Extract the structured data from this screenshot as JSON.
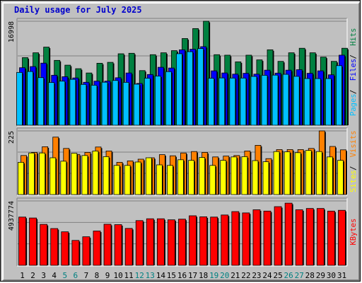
{
  "title": "Daily usage for July 2025",
  "colors": {
    "background": "#c0c0c0",
    "panel": "#c0c0c0",
    "hits": "#008040",
    "files": "#0000ff",
    "pages": "#00c0ff",
    "visits": "#ff8000",
    "sites": "#ffff00",
    "kbytes": "#ff0000",
    "title": "#0000cc",
    "day_weekday": "#000000",
    "day_weekend": "#008080"
  },
  "chart_data": [
    {
      "type": "bar",
      "panel": "hits-files-pages",
      "max_label": "16998",
      "right_label_parts": [
        "Pages",
        "Files",
        "Hits"
      ],
      "ylim": [
        0,
        16998
      ],
      "categories": [
        "1",
        "2",
        "3",
        "4",
        "5",
        "6",
        "7",
        "8",
        "9",
        "10",
        "11",
        "12",
        "13",
        "14",
        "15",
        "16",
        "17",
        "18",
        "19",
        "20",
        "21",
        "22",
        "23",
        "24",
        "25",
        "26",
        "27",
        "28",
        "29",
        "30",
        "31"
      ],
      "series": [
        {
          "name": "Hits",
          "values": [
            11050,
            11840,
            12770,
            10600,
            9820,
            9240,
            8540,
            10130,
            10280,
            11680,
            11760,
            8930,
            11530,
            11840,
            12190,
            14170,
            15800,
            16998,
            11530,
            11450,
            10360,
            11450,
            10680,
            12330,
            10440,
            11840,
            12580,
            11840,
            11140,
            10440,
            12580
          ]
        },
        {
          "name": "Files",
          "values": [
            9400,
            9590,
            10150,
            8170,
            7930,
            7730,
            7020,
            7210,
            7210,
            7760,
            8540,
            6830,
            8290,
            9470,
            9350,
            12330,
            12420,
            12840,
            8890,
            8540,
            8350,
            8490,
            8350,
            9000,
            8520,
            9000,
            9080,
            8490,
            8890,
            8240,
            11450
          ]
        },
        {
          "name": "Pages",
          "values": [
            8630,
            8780,
            7780,
            6980,
            7210,
            7500,
            6670,
            6540,
            7030,
            7320,
            7010,
            6710,
            7690,
            8040,
            8760,
            11690,
            12020,
            12530,
            7680,
            7730,
            7710,
            7710,
            7980,
            8160,
            8190,
            8320,
            7990,
            7630,
            7630,
            7630,
            9740
          ]
        }
      ]
    },
    {
      "type": "bar",
      "panel": "visits-sites",
      "max_label": "225",
      "right_label_parts": [
        "Sites",
        "Visits"
      ],
      "ylim": [
        0,
        225
      ],
      "categories": [
        "1",
        "2",
        "3",
        "4",
        "5",
        "6",
        "7",
        "8",
        "9",
        "10",
        "11",
        "12",
        "13",
        "14",
        "15",
        "16",
        "17",
        "18",
        "19",
        "20",
        "21",
        "22",
        "23",
        "24",
        "25",
        "26",
        "27",
        "28",
        "29",
        "30",
        "31"
      ],
      "series": [
        {
          "name": "Visits",
          "values": [
            138,
            149,
            169,
            203,
            163,
            142,
            149,
            168,
            154,
            114,
            119,
            125,
            130,
            141,
            137,
            147,
            152,
            149,
            133,
            136,
            138,
            154,
            174,
            127,
            159,
            159,
            159,
            163,
            225,
            170,
            158
          ]
        },
        {
          "name": "Sites",
          "values": [
            114,
            147,
            147,
            130,
            118,
            146,
            138,
            154,
            134,
            103,
            103,
            115,
            130,
            105,
            103,
            123,
            121,
            131,
            103,
            121,
            133,
            134,
            120,
            116,
            152,
            151,
            148,
            156,
            152,
            133,
            121
          ]
        }
      ]
    },
    {
      "type": "bar",
      "panel": "kbytes",
      "max_label": "4937774",
      "right_label_parts": [
        "KBytes"
      ],
      "ylim": [
        0,
        4937774
      ],
      "categories": [
        "1",
        "2",
        "3",
        "4",
        "5",
        "6",
        "7",
        "8",
        "9",
        "10",
        "11",
        "12",
        "13",
        "14",
        "15",
        "16",
        "17",
        "18",
        "19",
        "20",
        "21",
        "22",
        "23",
        "24",
        "25",
        "26",
        "27",
        "28",
        "29",
        "30",
        "31"
      ],
      "series": [
        {
          "name": "KBytes",
          "values": [
            3700000,
            3630000,
            3140000,
            2820000,
            2570000,
            1910000,
            2190000,
            2630000,
            3150000,
            3120000,
            2830000,
            3430000,
            3570000,
            3570000,
            3490000,
            3540000,
            3800000,
            3720000,
            3700000,
            3860000,
            4120000,
            4020000,
            4260000,
            4160000,
            4500000,
            4770000,
            4260000,
            4360000,
            4360000,
            4160000,
            4220000
          ]
        }
      ]
    }
  ],
  "weekend_days": [
    "5",
    "6",
    "12",
    "13",
    "19",
    "20",
    "26",
    "27"
  ]
}
